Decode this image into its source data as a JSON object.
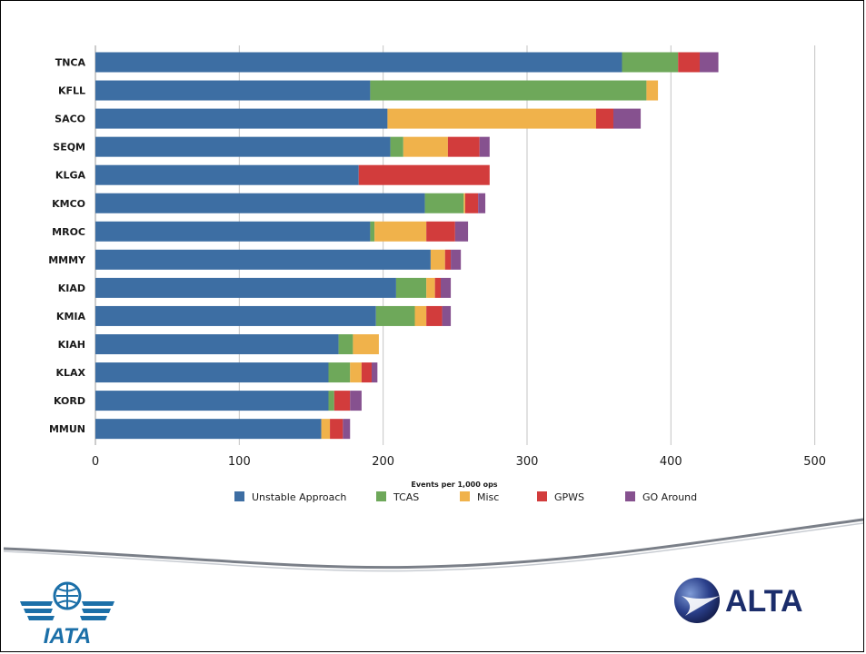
{
  "chart_data": {
    "type": "bar",
    "orientation": "horizontal",
    "stacked": true,
    "categories": [
      "TNCA",
      "KFLL",
      "SACO",
      "SEQM",
      "KLGA",
      "KMCO",
      "MROC",
      "MMMY",
      "KIAD",
      "KMIA",
      "KIAH",
      "KLAX",
      "KORD",
      "MMUN"
    ],
    "series": [
      {
        "name": "Unstable Approach",
        "color": "#3d6ea3",
        "values": [
          366,
          191,
          203,
          205,
          183,
          229,
          191,
          233,
          209,
          195,
          169,
          162,
          162,
          157
        ]
      },
      {
        "name": "TCAS",
        "color": "#6ea85a",
        "values": [
          39,
          192,
          0,
          9,
          0,
          27,
          3,
          0,
          21,
          27,
          10,
          15,
          4,
          0
        ]
      },
      {
        "name": "Misc",
        "color": "#f0b24b",
        "values": [
          0,
          8,
          145,
          31,
          0,
          1,
          36,
          10,
          6,
          8,
          18,
          8,
          0,
          6
        ]
      },
      {
        "name": "GPWS",
        "color": "#d23c3c",
        "values": [
          15,
          0,
          12,
          22,
          91,
          9,
          20,
          4,
          4,
          11,
          0,
          7,
          11,
          9
        ]
      },
      {
        "name": "GO Around",
        "color": "#86518f",
        "values": [
          13,
          0,
          19,
          7,
          0,
          5,
          9,
          7,
          7,
          6,
          0,
          4,
          8,
          5
        ]
      }
    ],
    "xlim": [
      0,
      530
    ],
    "xticks": [
      0,
      100,
      200,
      300,
      400,
      500
    ],
    "xlabel": "Events per 1,000 ops",
    "ylabel": "",
    "title": "",
    "grid": "vertical",
    "legend": "bottom"
  },
  "logos": {
    "iata": {
      "name": "IATA",
      "color": "#1b6fa8"
    },
    "alta": {
      "name": "ALTA",
      "color": "#1b2d6b"
    }
  }
}
